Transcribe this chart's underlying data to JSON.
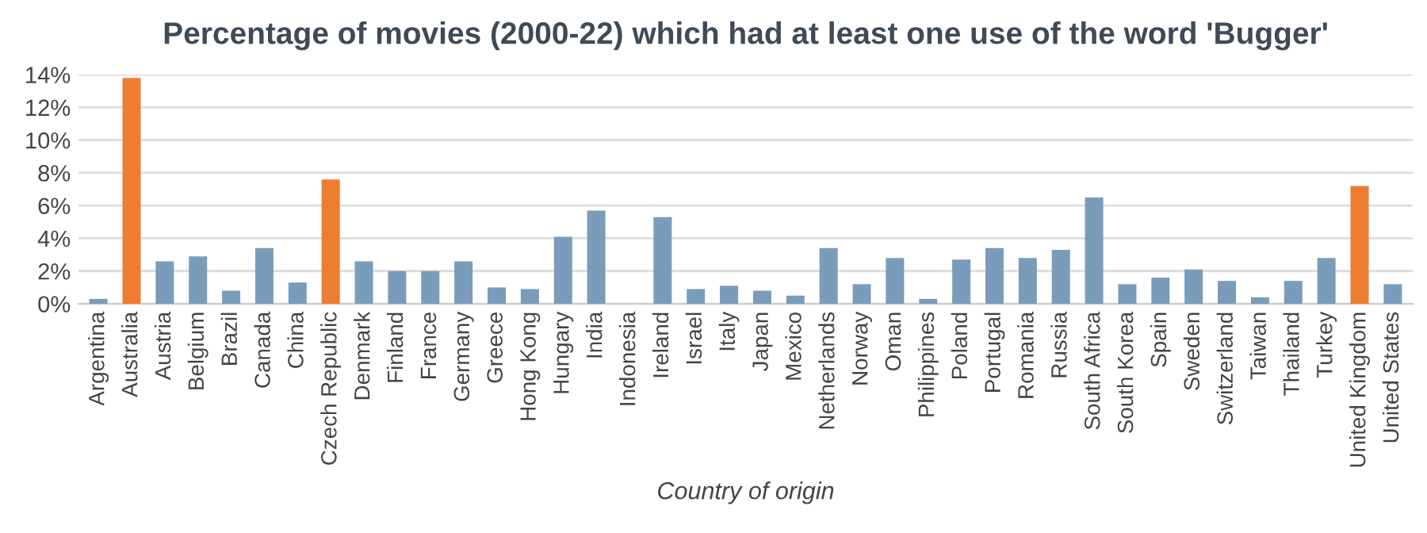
{
  "chart_data": {
    "type": "bar",
    "title": "Percentage of movies (2000-22) which had at least one use of the word 'Bugger'",
    "xlabel": "Country of origin",
    "categories": [
      "Argentina",
      "Australia",
      "Austria",
      "Belgium",
      "Brazil",
      "Canada",
      "China",
      "Czech Republic",
      "Denmark",
      "Finland",
      "France",
      "Germany",
      "Greece",
      "Hong Kong",
      "Hungary",
      "India",
      "Indonesia",
      "Ireland",
      "Israel",
      "Italy",
      "Japan",
      "Mexico",
      "Netherlands",
      "Norway",
      "Oman",
      "Philippines",
      "Poland",
      "Portugal",
      "Romania",
      "Russia",
      "South Africa",
      "South Korea",
      "Spain",
      "Sweden",
      "Switzerland",
      "Taiwan",
      "Thailand",
      "Turkey",
      "United Kingdom",
      "United States"
    ],
    "values": [
      0.3,
      13.8,
      2.6,
      2.9,
      0.8,
      3.4,
      1.3,
      7.6,
      2.6,
      2.0,
      2.0,
      2.6,
      1.0,
      0.9,
      4.1,
      5.7,
      0,
      5.3,
      0.9,
      1.1,
      0.8,
      0.5,
      3.4,
      1.2,
      2.8,
      0.3,
      2.7,
      3.4,
      2.8,
      3.3,
      6.5,
      1.2,
      1.6,
      2.1,
      1.4,
      0.4,
      1.4,
      2.8,
      7.2,
      1.2
    ],
    "colors": [
      "#7a9cbb",
      "#ed7d31",
      "#7a9cbb",
      "#7a9cbb",
      "#7a9cbb",
      "#7a9cbb",
      "#7a9cbb",
      "#ed7d31",
      "#7a9cbb",
      "#7a9cbb",
      "#7a9cbb",
      "#7a9cbb",
      "#7a9cbb",
      "#7a9cbb",
      "#7a9cbb",
      "#7a9cbb",
      "#7a9cbb",
      "#7a9cbb",
      "#7a9cbb",
      "#7a9cbb",
      "#7a9cbb",
      "#7a9cbb",
      "#7a9cbb",
      "#7a9cbb",
      "#7a9cbb",
      "#7a9cbb",
      "#7a9cbb",
      "#7a9cbb",
      "#7a9cbb",
      "#7a9cbb",
      "#7a9cbb",
      "#7a9cbb",
      "#7a9cbb",
      "#7a9cbb",
      "#7a9cbb",
      "#7a9cbb",
      "#7a9cbb",
      "#7a9cbb",
      "#ed7d31",
      "#7a9cbb"
    ],
    "ylim": [
      0,
      14
    ],
    "yticks": [
      {
        "value": 0,
        "label": "0%"
      },
      {
        "value": 2,
        "label": "2%"
      },
      {
        "value": 4,
        "label": "4%"
      },
      {
        "value": 6,
        "label": "6%"
      },
      {
        "value": 8,
        "label": "8%"
      },
      {
        "value": 10,
        "label": "10%"
      },
      {
        "value": 12,
        "label": "12%"
      },
      {
        "value": 14,
        "label": "14%"
      }
    ],
    "grid": "y"
  }
}
